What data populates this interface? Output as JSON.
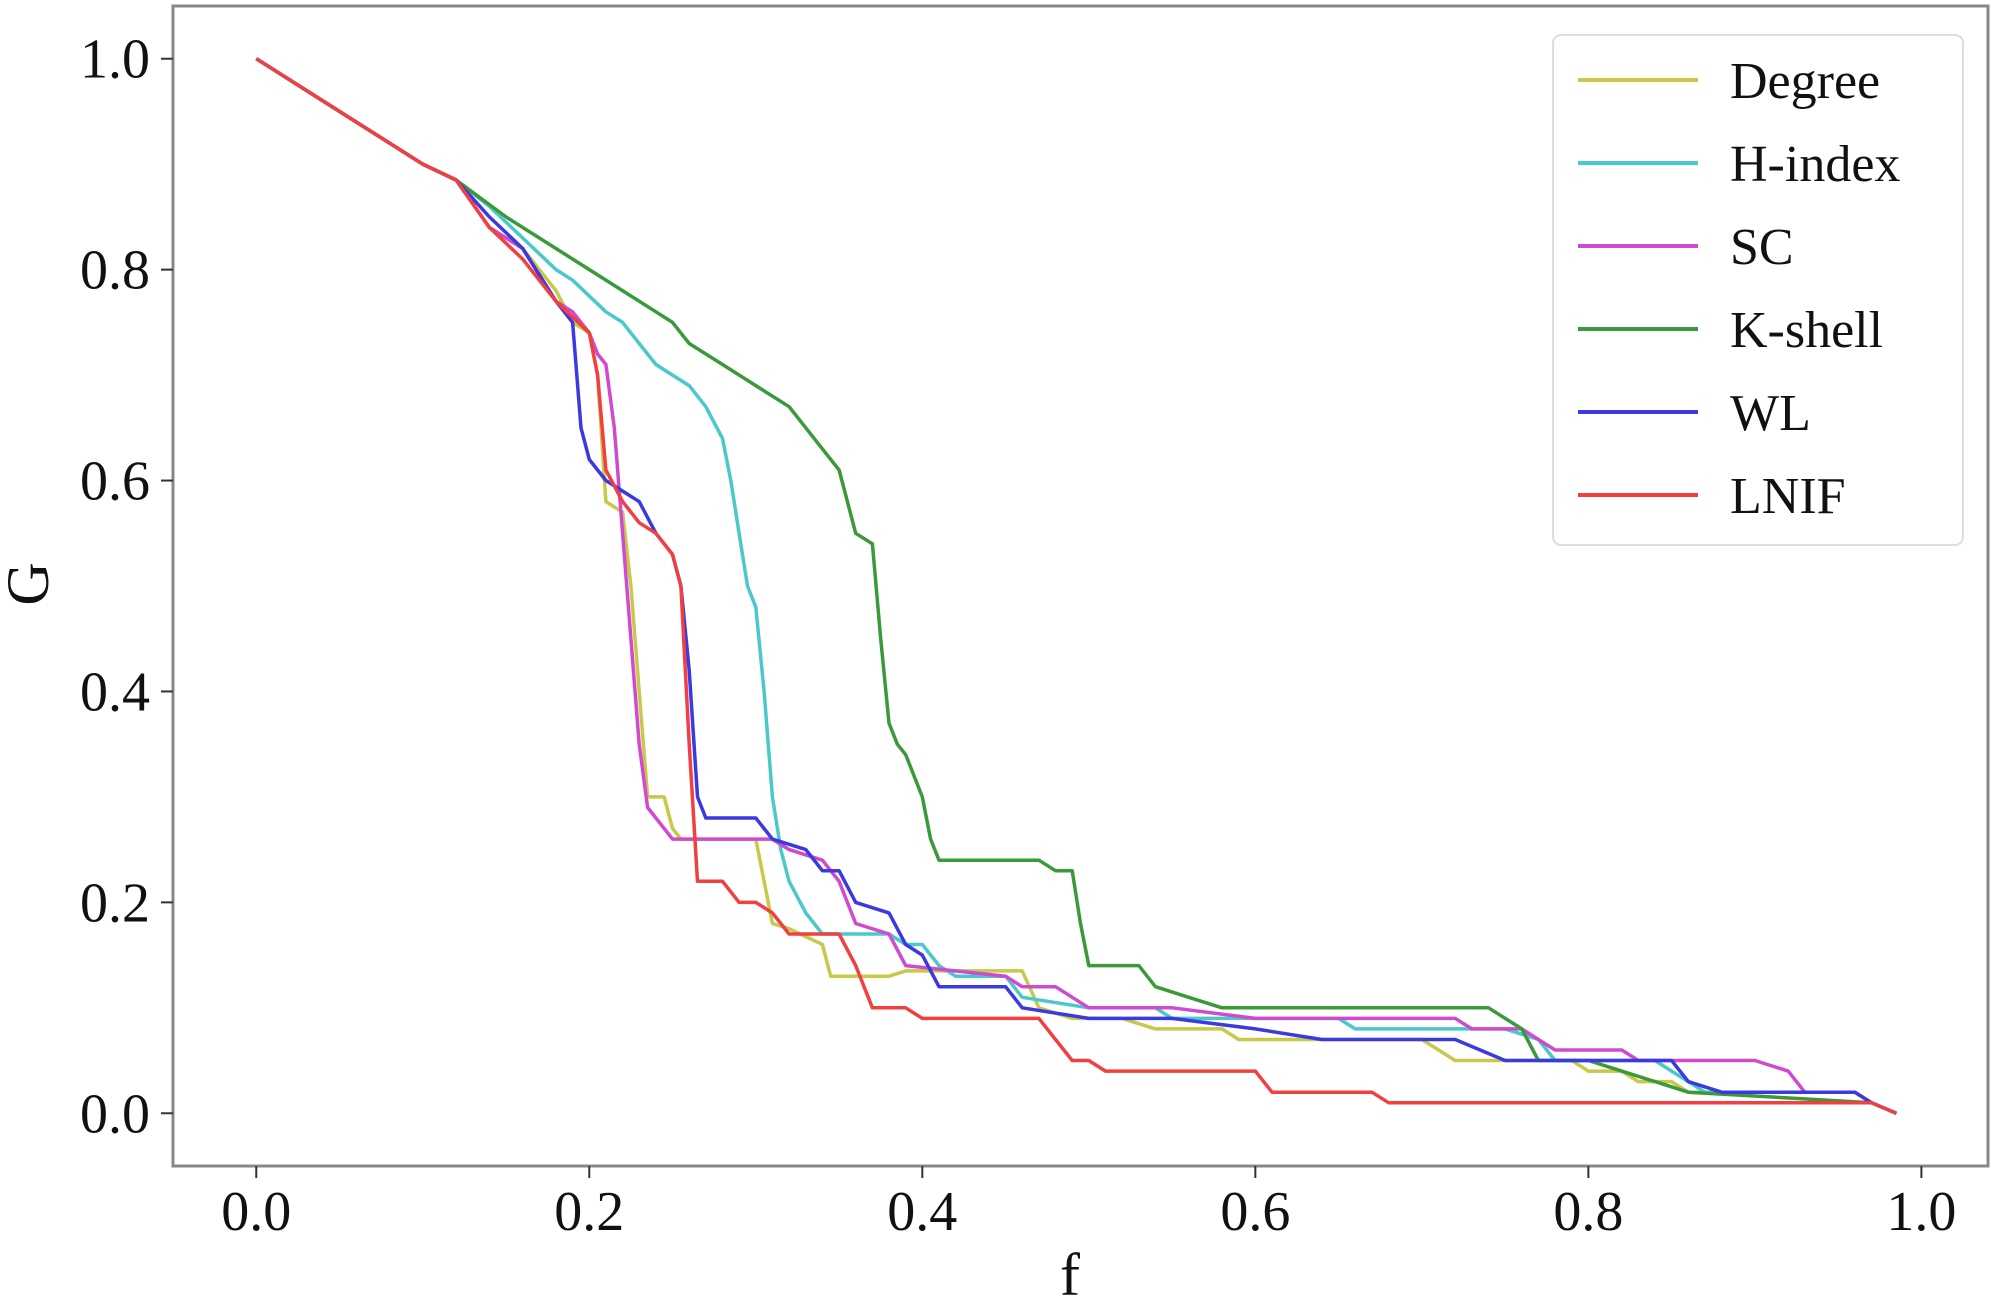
{
  "chart_data": {
    "type": "line",
    "xlabel": "f",
    "ylabel": "G",
    "xlim": [
      -0.05,
      1.04
    ],
    "ylim": [
      -0.05,
      1.05
    ],
    "xticks": [
      "0.0",
      "0.2",
      "0.4",
      "0.6",
      "0.8",
      "1.0"
    ],
    "yticks": [
      "0.0",
      "0.2",
      "0.4",
      "0.6",
      "0.8",
      "1.0"
    ],
    "grid": false,
    "legend_position": "top-right",
    "series": [
      {
        "name": "Degree",
        "color": "#c8c84a",
        "points": [
          [
            0.0,
            1.0
          ],
          [
            0.1,
            0.9
          ],
          [
            0.12,
            0.885
          ],
          [
            0.14,
            0.84
          ],
          [
            0.16,
            0.82
          ],
          [
            0.18,
            0.78
          ],
          [
            0.19,
            0.75
          ],
          [
            0.2,
            0.74
          ],
          [
            0.205,
            0.7
          ],
          [
            0.21,
            0.58
          ],
          [
            0.22,
            0.57
          ],
          [
            0.225,
            0.5
          ],
          [
            0.23,
            0.4
          ],
          [
            0.235,
            0.3
          ],
          [
            0.245,
            0.3
          ],
          [
            0.25,
            0.27
          ],
          [
            0.255,
            0.26
          ],
          [
            0.3,
            0.26
          ],
          [
            0.305,
            0.22
          ],
          [
            0.31,
            0.18
          ],
          [
            0.32,
            0.175
          ],
          [
            0.34,
            0.16
          ],
          [
            0.345,
            0.13
          ],
          [
            0.38,
            0.13
          ],
          [
            0.39,
            0.135
          ],
          [
            0.46,
            0.135
          ],
          [
            0.47,
            0.1
          ],
          [
            0.49,
            0.09
          ],
          [
            0.52,
            0.09
          ],
          [
            0.54,
            0.08
          ],
          [
            0.58,
            0.08
          ],
          [
            0.59,
            0.07
          ],
          [
            0.66,
            0.07
          ],
          [
            0.7,
            0.07
          ],
          [
            0.72,
            0.05
          ],
          [
            0.79,
            0.05
          ],
          [
            0.8,
            0.04
          ],
          [
            0.82,
            0.04
          ],
          [
            0.83,
            0.03
          ],
          [
            0.85,
            0.03
          ],
          [
            0.86,
            0.02
          ],
          [
            0.96,
            0.02
          ],
          [
            0.97,
            0.01
          ],
          [
            0.985,
            0.0
          ]
        ]
      },
      {
        "name": "H-index",
        "color": "#4ac8cc",
        "points": [
          [
            0.0,
            1.0
          ],
          [
            0.1,
            0.9
          ],
          [
            0.12,
            0.885
          ],
          [
            0.14,
            0.86
          ],
          [
            0.16,
            0.83
          ],
          [
            0.18,
            0.8
          ],
          [
            0.19,
            0.79
          ],
          [
            0.21,
            0.76
          ],
          [
            0.22,
            0.75
          ],
          [
            0.23,
            0.73
          ],
          [
            0.24,
            0.71
          ],
          [
            0.25,
            0.7
          ],
          [
            0.26,
            0.69
          ],
          [
            0.27,
            0.67
          ],
          [
            0.28,
            0.64
          ],
          [
            0.285,
            0.6
          ],
          [
            0.29,
            0.55
          ],
          [
            0.295,
            0.5
          ],
          [
            0.3,
            0.48
          ],
          [
            0.305,
            0.4
          ],
          [
            0.31,
            0.3
          ],
          [
            0.315,
            0.25
          ],
          [
            0.32,
            0.22
          ],
          [
            0.33,
            0.19
          ],
          [
            0.34,
            0.17
          ],
          [
            0.38,
            0.17
          ],
          [
            0.39,
            0.16
          ],
          [
            0.4,
            0.16
          ],
          [
            0.41,
            0.14
          ],
          [
            0.42,
            0.13
          ],
          [
            0.45,
            0.13
          ],
          [
            0.46,
            0.11
          ],
          [
            0.5,
            0.1
          ],
          [
            0.54,
            0.1
          ],
          [
            0.55,
            0.09
          ],
          [
            0.65,
            0.09
          ],
          [
            0.66,
            0.08
          ],
          [
            0.75,
            0.08
          ],
          [
            0.77,
            0.07
          ],
          [
            0.78,
            0.05
          ],
          [
            0.84,
            0.05
          ],
          [
            0.85,
            0.04
          ],
          [
            0.86,
            0.03
          ],
          [
            0.87,
            0.02
          ],
          [
            0.96,
            0.02
          ],
          [
            0.97,
            0.01
          ],
          [
            0.985,
            0.0
          ]
        ]
      },
      {
        "name": "SC",
        "color": "#d04ad0",
        "points": [
          [
            0.0,
            1.0
          ],
          [
            0.1,
            0.9
          ],
          [
            0.12,
            0.885
          ],
          [
            0.14,
            0.84
          ],
          [
            0.16,
            0.82
          ],
          [
            0.18,
            0.77
          ],
          [
            0.19,
            0.76
          ],
          [
            0.2,
            0.74
          ],
          [
            0.205,
            0.72
          ],
          [
            0.21,
            0.71
          ],
          [
            0.215,
            0.65
          ],
          [
            0.22,
            0.55
          ],
          [
            0.225,
            0.45
          ],
          [
            0.23,
            0.35
          ],
          [
            0.235,
            0.29
          ],
          [
            0.24,
            0.28
          ],
          [
            0.25,
            0.26
          ],
          [
            0.31,
            0.26
          ],
          [
            0.32,
            0.25
          ],
          [
            0.34,
            0.24
          ],
          [
            0.35,
            0.22
          ],
          [
            0.36,
            0.18
          ],
          [
            0.38,
            0.17
          ],
          [
            0.39,
            0.14
          ],
          [
            0.45,
            0.13
          ],
          [
            0.46,
            0.12
          ],
          [
            0.48,
            0.12
          ],
          [
            0.5,
            0.1
          ],
          [
            0.55,
            0.1
          ],
          [
            0.6,
            0.09
          ],
          [
            0.72,
            0.09
          ],
          [
            0.73,
            0.08
          ],
          [
            0.76,
            0.08
          ],
          [
            0.77,
            0.07
          ],
          [
            0.78,
            0.06
          ],
          [
            0.82,
            0.06
          ],
          [
            0.83,
            0.05
          ],
          [
            0.88,
            0.05
          ],
          [
            0.9,
            0.05
          ],
          [
            0.92,
            0.04
          ],
          [
            0.93,
            0.02
          ],
          [
            0.96,
            0.02
          ],
          [
            0.97,
            0.01
          ],
          [
            0.985,
            0.0
          ]
        ]
      },
      {
        "name": "K-shell",
        "color": "#3a9a3a",
        "points": [
          [
            0.0,
            1.0
          ],
          [
            0.1,
            0.9
          ],
          [
            0.12,
            0.885
          ],
          [
            0.15,
            0.85
          ],
          [
            0.2,
            0.8
          ],
          [
            0.24,
            0.76
          ],
          [
            0.25,
            0.75
          ],
          [
            0.26,
            0.73
          ],
          [
            0.28,
            0.71
          ],
          [
            0.3,
            0.69
          ],
          [
            0.32,
            0.67
          ],
          [
            0.33,
            0.65
          ],
          [
            0.34,
            0.63
          ],
          [
            0.35,
            0.61
          ],
          [
            0.355,
            0.58
          ],
          [
            0.36,
            0.55
          ],
          [
            0.37,
            0.54
          ],
          [
            0.375,
            0.45
          ],
          [
            0.38,
            0.37
          ],
          [
            0.385,
            0.35
          ],
          [
            0.39,
            0.34
          ],
          [
            0.4,
            0.3
          ],
          [
            0.405,
            0.26
          ],
          [
            0.41,
            0.24
          ],
          [
            0.47,
            0.24
          ],
          [
            0.48,
            0.23
          ],
          [
            0.49,
            0.23
          ],
          [
            0.495,
            0.18
          ],
          [
            0.5,
            0.14
          ],
          [
            0.53,
            0.14
          ],
          [
            0.54,
            0.12
          ],
          [
            0.56,
            0.11
          ],
          [
            0.58,
            0.1
          ],
          [
            0.6,
            0.1
          ],
          [
            0.74,
            0.1
          ],
          [
            0.76,
            0.08
          ],
          [
            0.77,
            0.05
          ],
          [
            0.8,
            0.05
          ],
          [
            0.82,
            0.04
          ],
          [
            0.84,
            0.03
          ],
          [
            0.86,
            0.02
          ],
          [
            0.97,
            0.01
          ],
          [
            0.985,
            0.0
          ]
        ]
      },
      {
        "name": "WL",
        "color": "#3a3ae0",
        "points": [
          [
            0.0,
            1.0
          ],
          [
            0.1,
            0.9
          ],
          [
            0.12,
            0.885
          ],
          [
            0.14,
            0.85
          ],
          [
            0.16,
            0.82
          ],
          [
            0.18,
            0.77
          ],
          [
            0.19,
            0.75
          ],
          [
            0.195,
            0.65
          ],
          [
            0.2,
            0.62
          ],
          [
            0.21,
            0.6
          ],
          [
            0.22,
            0.59
          ],
          [
            0.23,
            0.58
          ],
          [
            0.24,
            0.55
          ],
          [
            0.25,
            0.53
          ],
          [
            0.255,
            0.5
          ],
          [
            0.26,
            0.42
          ],
          [
            0.265,
            0.3
          ],
          [
            0.27,
            0.28
          ],
          [
            0.3,
            0.28
          ],
          [
            0.31,
            0.26
          ],
          [
            0.33,
            0.25
          ],
          [
            0.34,
            0.23
          ],
          [
            0.35,
            0.23
          ],
          [
            0.36,
            0.2
          ],
          [
            0.38,
            0.19
          ],
          [
            0.39,
            0.16
          ],
          [
            0.4,
            0.15
          ],
          [
            0.41,
            0.12
          ],
          [
            0.45,
            0.12
          ],
          [
            0.46,
            0.1
          ],
          [
            0.5,
            0.09
          ],
          [
            0.55,
            0.09
          ],
          [
            0.6,
            0.08
          ],
          [
            0.64,
            0.07
          ],
          [
            0.72,
            0.07
          ],
          [
            0.75,
            0.05
          ],
          [
            0.85,
            0.05
          ],
          [
            0.86,
            0.03
          ],
          [
            0.88,
            0.02
          ],
          [
            0.96,
            0.02
          ],
          [
            0.97,
            0.01
          ],
          [
            0.985,
            0.0
          ]
        ]
      },
      {
        "name": "LNIF",
        "color": "#f04040",
        "points": [
          [
            0.0,
            1.0
          ],
          [
            0.1,
            0.9
          ],
          [
            0.12,
            0.885
          ],
          [
            0.14,
            0.84
          ],
          [
            0.16,
            0.81
          ],
          [
            0.18,
            0.77
          ],
          [
            0.2,
            0.74
          ],
          [
            0.205,
            0.7
          ],
          [
            0.21,
            0.61
          ],
          [
            0.22,
            0.58
          ],
          [
            0.23,
            0.56
          ],
          [
            0.24,
            0.55
          ],
          [
            0.25,
            0.53
          ],
          [
            0.255,
            0.5
          ],
          [
            0.26,
            0.35
          ],
          [
            0.265,
            0.22
          ],
          [
            0.28,
            0.22
          ],
          [
            0.29,
            0.2
          ],
          [
            0.3,
            0.2
          ],
          [
            0.31,
            0.19
          ],
          [
            0.32,
            0.17
          ],
          [
            0.35,
            0.17
          ],
          [
            0.36,
            0.14
          ],
          [
            0.37,
            0.1
          ],
          [
            0.39,
            0.1
          ],
          [
            0.4,
            0.09
          ],
          [
            0.47,
            0.09
          ],
          [
            0.48,
            0.07
          ],
          [
            0.49,
            0.05
          ],
          [
            0.5,
            0.05
          ],
          [
            0.51,
            0.04
          ],
          [
            0.6,
            0.04
          ],
          [
            0.61,
            0.02
          ],
          [
            0.67,
            0.02
          ],
          [
            0.68,
            0.01
          ],
          [
            0.97,
            0.01
          ],
          [
            0.985,
            0.0
          ]
        ]
      }
    ]
  }
}
